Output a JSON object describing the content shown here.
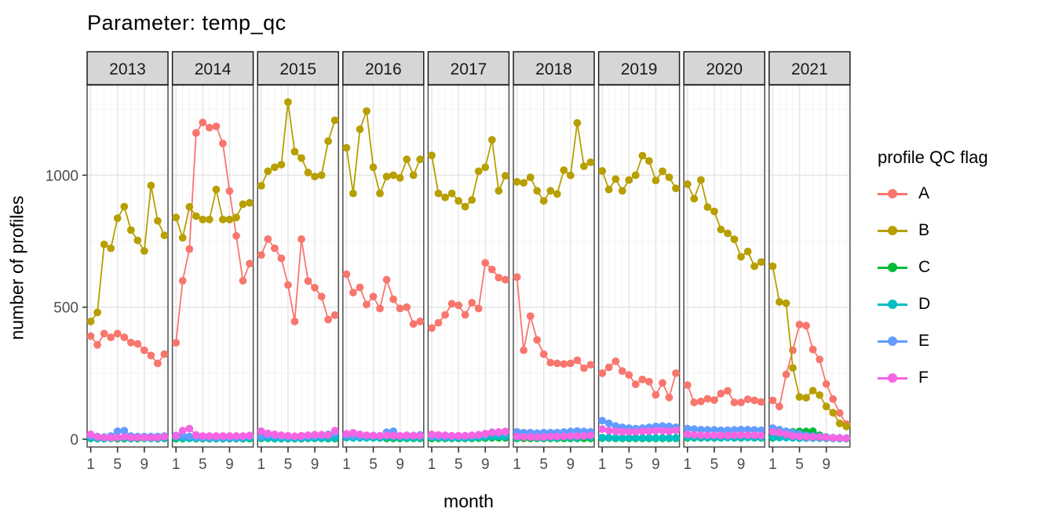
{
  "title": "Parameter:  temp_qc",
  "axes": {
    "x_label": "month",
    "y_label": "number of profiles",
    "y_tick_labels": [
      "0",
      "500",
      "1000"
    ],
    "x_tick_labels": [
      "1",
      "5",
      "9"
    ]
  },
  "legend": {
    "title": "profile QC flag",
    "entries": [
      {
        "label": "A",
        "color": "#F8766D"
      },
      {
        "label": "B",
        "color": "#B79F00"
      },
      {
        "label": "C",
        "color": "#00BA38"
      },
      {
        "label": "D",
        "color": "#00BFC4"
      },
      {
        "label": "E",
        "color": "#619CFF"
      },
      {
        "label": "F",
        "color": "#F564E3"
      }
    ]
  },
  "chart_data": {
    "type": "line",
    "title": "Parameter:  temp_qc",
    "xlabel": "month",
    "ylabel": "number of profiles",
    "x": [
      1,
      2,
      3,
      4,
      5,
      6,
      7,
      8,
      9,
      10,
      11,
      12
    ],
    "x_breaks": [
      1,
      5,
      9
    ],
    "y_breaks": [
      0,
      500,
      1000
    ],
    "y_minor_breaks": [
      250,
      750,
      1250
    ],
    "ylim": [
      -60,
      1345
    ],
    "grid": "on",
    "legend_position": "right",
    "facet_variable": "year",
    "series_colors": {
      "A": "#F8766D",
      "B": "#B79F00",
      "C": "#00BA38",
      "D": "#00BFC4",
      "E": "#619CFF",
      "F": "#F564E3"
    },
    "facets": [
      {
        "year": "2013",
        "series": {
          "A": [
            390,
            357,
            400,
            386,
            400,
            386,
            366,
            361,
            337,
            317,
            287,
            322
          ],
          "B": [
            446,
            480,
            738,
            723,
            837,
            881,
            792,
            753,
            713,
            961,
            827,
            772
          ],
          "C": [
            3,
            2,
            2,
            3,
            2,
            2,
            2,
            2,
            3,
            3,
            2,
            3
          ],
          "D": [
            5,
            3,
            3,
            4,
            6,
            4,
            3,
            5,
            4,
            3,
            3,
            3
          ],
          "E": [
            12,
            10,
            8,
            12,
            30,
            32,
            12,
            10,
            10,
            10,
            10,
            12
          ],
          "F": [
            18,
            8,
            6,
            6,
            6,
            9,
            6,
            6,
            6,
            6,
            6,
            9
          ]
        }
      },
      {
        "year": "2014",
        "series": {
          "A": [
            365,
            600,
            720,
            1160,
            1200,
            1180,
            1185,
            1120,
            940,
            770,
            600,
            665
          ],
          "B": [
            840,
            763,
            880,
            845,
            832,
            832,
            946,
            832,
            832,
            840,
            890,
            895
          ],
          "C": [
            2,
            2,
            3,
            2,
            2,
            2,
            2,
            2,
            2,
            2,
            2,
            2
          ],
          "D": [
            6,
            4,
            4,
            3,
            3,
            3,
            3,
            3,
            3,
            3,
            4,
            4
          ],
          "E": [
            14,
            12,
            10,
            8,
            6,
            6,
            6,
            7,
            6,
            6,
            8,
            10
          ],
          "F": [
            12,
            32,
            40,
            16,
            12,
            12,
            12,
            12,
            12,
            12,
            12,
            14
          ]
        }
      },
      {
        "year": "2015",
        "series": {
          "A": [
            698,
            758,
            723,
            685,
            584,
            446,
            758,
            599,
            574,
            540,
            453,
            470
          ],
          "B": [
            960,
            1015,
            1030,
            1040,
            1277,
            1089,
            1065,
            1010,
            995,
            1000,
            1129,
            1208
          ],
          "C": [
            3,
            3,
            2,
            2,
            2,
            2,
            2,
            3,
            3,
            3,
            2,
            2
          ],
          "D": [
            4,
            4,
            3,
            3,
            3,
            3,
            3,
            4,
            4,
            4,
            4,
            4
          ],
          "E": [
            12,
            14,
            12,
            10,
            9,
            9,
            9,
            11,
            11,
            13,
            18,
            22
          ],
          "F": [
            30,
            22,
            18,
            15,
            13,
            11,
            13,
            15,
            17,
            17,
            15,
            32
          ]
        }
      },
      {
        "year": "2016",
        "series": {
          "A": [
            625,
            555,
            575,
            510,
            540,
            495,
            604,
            530,
            495,
            500,
            436,
            446
          ],
          "B": [
            1104,
            931,
            1174,
            1243,
            1030,
            931,
            995,
            1000,
            990,
            1060,
            1000,
            1060
          ],
          "C": [
            10,
            8,
            8,
            6,
            6,
            5,
            3,
            3,
            3,
            3,
            3,
            3
          ],
          "D": [
            6,
            5,
            5,
            5,
            5,
            5,
            8,
            8,
            6,
            5,
            5,
            5
          ],
          "E": [
            14,
            12,
            12,
            12,
            14,
            12,
            26,
            30,
            12,
            12,
            14,
            16
          ],
          "F": [
            20,
            24,
            18,
            15,
            13,
            13,
            15,
            13,
            13,
            15,
            13,
            13
          ]
        }
      },
      {
        "year": "2017",
        "series": {
          "A": [
            421,
            441,
            471,
            513,
            507,
            471,
            517,
            495,
            668,
            643,
            612,
            604
          ],
          "B": [
            1075,
            931,
            916,
            931,
            903,
            881,
            906,
            1015,
            1030,
            1134,
            941,
            998
          ],
          "C": [
            3,
            3,
            3,
            3,
            3,
            3,
            3,
            4,
            4,
            5,
            5,
            5
          ],
          "D": [
            8,
            6,
            6,
            5,
            5,
            5,
            6,
            8,
            8,
            10,
            10,
            10
          ],
          "E": [
            10,
            10,
            10,
            10,
            10,
            10,
            12,
            14,
            16,
            26,
            22,
            24
          ],
          "F": [
            18,
            16,
            15,
            13,
            13,
            13,
            15,
            17,
            21,
            25,
            27,
            29
          ]
        }
      },
      {
        "year": "2018",
        "series": {
          "A": [
            614,
            337,
            466,
            376,
            322,
            290,
            287,
            285,
            287,
            299,
            269,
            282
          ],
          "B": [
            975,
            971,
            992,
            941,
            903,
            941,
            929,
            1019,
            999,
            1198,
            1034,
            1049
          ],
          "C": [
            3,
            3,
            3,
            3,
            3,
            3,
            3,
            3,
            3,
            3,
            3,
            3
          ],
          "D": [
            6,
            10,
            8,
            6,
            6,
            6,
            6,
            8,
            6,
            6,
            10,
            8
          ],
          "E": [
            28,
            25,
            25,
            23,
            25,
            25,
            25,
            27,
            29,
            31,
            29,
            28
          ],
          "F": [
            10,
            8,
            8,
            8,
            8,
            10,
            10,
            10,
            12,
            12,
            12,
            14
          ]
        }
      },
      {
        "year": "2019",
        "series": {
          "A": [
            250,
            272,
            295,
            258,
            243,
            208,
            226,
            218,
            168,
            213,
            158,
            250
          ],
          "B": [
            1016,
            946,
            985,
            941,
            982,
            1000,
            1074,
            1054,
            980,
            1015,
            992,
            950
          ],
          "C": [
            4,
            4,
            3,
            3,
            3,
            3,
            3,
            3,
            3,
            3,
            3,
            3
          ],
          "D": [
            6,
            6,
            5,
            5,
            5,
            5,
            5,
            5,
            5,
            5,
            5,
            5
          ],
          "E": [
            70,
            60,
            50,
            45,
            42,
            40,
            42,
            45,
            48,
            50,
            48,
            45
          ],
          "F": [
            38,
            32,
            30,
            28,
            28,
            28,
            30,
            30,
            32,
            32,
            30,
            34
          ]
        }
      },
      {
        "year": "2020",
        "series": {
          "A": [
            205,
            139,
            143,
            153,
            148,
            173,
            183,
            139,
            139,
            151,
            147,
            141
          ],
          "B": [
            966,
            911,
            982,
            879,
            863,
            794,
            780,
            757,
            691,
            711,
            655,
            671
          ],
          "C": [
            5,
            5,
            5,
            5,
            5,
            5,
            18,
            5,
            5,
            16,
            5,
            5
          ],
          "D": [
            8,
            6,
            6,
            6,
            6,
            6,
            6,
            6,
            6,
            6,
            6,
            6
          ],
          "E": [
            40,
            38,
            36,
            35,
            35,
            34,
            34,
            35,
            36,
            36,
            35,
            34
          ],
          "F": [
            18,
            16,
            15,
            15,
            15,
            14,
            14,
            15,
            16,
            15,
            15,
            14
          ]
        }
      },
      {
        "year": "2021",
        "series": {
          "A": [
            147,
            124,
            245,
            337,
            434,
            430,
            340,
            302,
            209,
            152,
            99,
            57
          ],
          "B": [
            655,
            520,
            515,
            270,
            160,
            157,
            184,
            167,
            124,
            100,
            60,
            48
          ],
          "C": [
            5,
            8,
            28,
            28,
            29,
            29,
            30,
            15,
            8,
            5,
            3,
            2
          ],
          "D": [
            8,
            6,
            6,
            5,
            4,
            4,
            4,
            4,
            3,
            3,
            2,
            2
          ],
          "E": [
            42,
            36,
            30,
            25,
            20,
            15,
            12,
            10,
            8,
            6,
            5,
            4
          ],
          "F": [
            28,
            24,
            18,
            12,
            10,
            8,
            8,
            8,
            6,
            5,
            4,
            3
          ]
        }
      }
    ]
  },
  "style": {
    "strip_fill": "#D6D6D6",
    "strip_border": "#1A1A1A",
    "panel_border": "#4D4D4D",
    "grid_major": "#E3E3E3",
    "grid_minor": "#F4F4F4",
    "tick_text": "#4D4D4D"
  }
}
